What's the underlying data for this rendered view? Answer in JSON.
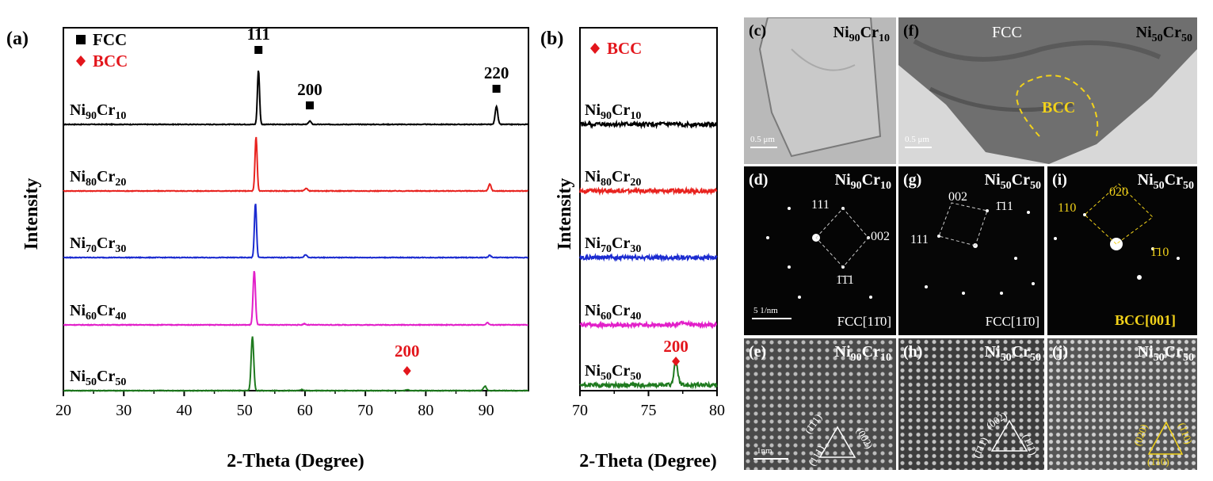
{
  "panel_labels": {
    "a": "(a)",
    "b": "(b)",
    "c": "(c)",
    "d": "(d)",
    "e": "(e)",
    "f": "(f)",
    "g": "(g)",
    "h": "(h)",
    "i": "(i)",
    "j": "(j)"
  },
  "axis": {
    "xlabel": "2-Theta (Degree)",
    "ylabel": "Intensity"
  },
  "legend": {
    "fcc": "FCC",
    "bcc": "BCC"
  },
  "colors": {
    "black": "#000000",
    "red": "#e8231f",
    "blue": "#1b2bd0",
    "magenta": "#e21fc9",
    "green": "#1f7a1f",
    "fcc_marker": "#000000",
    "bcc_marker": "#e3161c",
    "yellow": "#f2d21a"
  },
  "samples": [
    {
      "base": "Ni",
      "n1": "90",
      "el2": "Cr",
      "n2": "10",
      "color": "#000000"
    },
    {
      "base": "Ni",
      "n1": "80",
      "el2": "Cr",
      "n2": "20",
      "color": "#e8231f"
    },
    {
      "base": "Ni",
      "n1": "70",
      "el2": "Cr",
      "n2": "30",
      "color": "#1b2bd0"
    },
    {
      "base": "Ni",
      "n1": "60",
      "el2": "Cr",
      "n2": "40",
      "color": "#e21fc9"
    },
    {
      "base": "Ni",
      "n1": "50",
      "el2": "Cr",
      "n2": "50",
      "color": "#1f7a1f"
    }
  ],
  "chart_data": [
    {
      "type": "line",
      "panel": "a",
      "xlabel": "2-Theta (Degree)",
      "ylabel": "Intensity",
      "xlim": [
        20,
        97
      ],
      "xticks": [
        20,
        30,
        40,
        50,
        60,
        70,
        80,
        90
      ],
      "legend": [
        {
          "marker": "square",
          "label": "FCC"
        },
        {
          "marker": "diamond",
          "label": "BCC"
        }
      ],
      "series": [
        {
          "name": "Ni90Cr10",
          "peaks": [
            {
              "x": 52.3,
              "h": 0.95,
              "w": 0.25
            },
            {
              "x": 60.8,
              "h": 0.06,
              "w": 0.3
            },
            {
              "x": 91.7,
              "h": 0.32,
              "w": 0.3
            }
          ]
        },
        {
          "name": "Ni80Cr20",
          "peaks": [
            {
              "x": 51.9,
              "h": 0.95,
              "w": 0.25
            },
            {
              "x": 60.2,
              "h": 0.05,
              "w": 0.3
            },
            {
              "x": 90.6,
              "h": 0.12,
              "w": 0.3
            }
          ]
        },
        {
          "name": "Ni70Cr30",
          "peaks": [
            {
              "x": 51.8,
              "h": 0.95,
              "w": 0.25
            },
            {
              "x": 60.1,
              "h": 0.05,
              "w": 0.3
            },
            {
              "x": 90.6,
              "h": 0.04,
              "w": 0.3
            }
          ]
        },
        {
          "name": "Ni60Cr40",
          "peaks": [
            {
              "x": 51.6,
              "h": 0.95,
              "w": 0.28
            },
            {
              "x": 59.9,
              "h": 0.02,
              "w": 0.3
            },
            {
              "x": 90.2,
              "h": 0.04,
              "w": 0.3
            }
          ]
        },
        {
          "name": "Ni50Cr50",
          "peaks": [
            {
              "x": 51.3,
              "h": 0.95,
              "w": 0.3
            },
            {
              "x": 59.5,
              "h": 0.02,
              "w": 0.3
            },
            {
              "x": 76.9,
              "h": 0.02,
              "w": 0.3
            },
            {
              "x": 89.8,
              "h": 0.08,
              "w": 0.35
            }
          ]
        }
      ],
      "annotations": [
        {
          "text": "111",
          "x": 52.3,
          "marker": "square",
          "color": "#000000"
        },
        {
          "text": "200",
          "x": 60.8,
          "marker": "square",
          "color": "#000000"
        },
        {
          "text": "220",
          "x": 91.7,
          "marker": "square",
          "color": "#000000"
        },
        {
          "text": "200",
          "x": 76.9,
          "marker": "diamond",
          "color": "#e3161c"
        }
      ]
    },
    {
      "type": "line",
      "panel": "b",
      "xlabel": "2-Theta (Degree)",
      "ylabel": "Intensity",
      "xlim": [
        70,
        80
      ],
      "xticks": [
        70,
        75,
        80
      ],
      "legend": [
        {
          "marker": "diamond",
          "label": "BCC"
        }
      ],
      "series": [
        {
          "name": "Ni90Cr10",
          "peaks": []
        },
        {
          "name": "Ni80Cr20",
          "peaks": []
        },
        {
          "name": "Ni70Cr30",
          "peaks": []
        },
        {
          "name": "Ni60Cr40",
          "peaks": [
            {
              "x": 77.5,
              "h": 0.05,
              "w": 0.4
            }
          ]
        },
        {
          "name": "Ni50Cr50",
          "peaks": [
            {
              "x": 77.0,
              "h": 0.4,
              "w": 0.2
            }
          ]
        }
      ],
      "annotations": [
        {
          "text": "200",
          "x": 77.0,
          "marker": "diamond",
          "color": "#e3161c"
        }
      ]
    }
  ],
  "micrographs": {
    "c": {
      "comp": {
        "base": "Ni",
        "n1": "90",
        "el2": "Cr",
        "n2": "10"
      },
      "scale": "0.5 μm"
    },
    "f": {
      "comp": {
        "base": "Ni",
        "n1": "50",
        "el2": "Cr",
        "n2": "50"
      },
      "fcc": "FCC",
      "bcc": "BCC",
      "scale": "0.5 μm"
    },
    "d": {
      "comp": {
        "base": "Ni",
        "n1": "90",
        "el2": "Cr",
        "n2": "10"
      },
      "zone": "FCC[11̄0]",
      "scale": "5 1/nm",
      "spots": [
        "111",
        "002",
        "1̄1̄1"
      ]
    },
    "g": {
      "comp": {
        "base": "Ni",
        "n1": "50",
        "el2": "Cr",
        "n2": "50"
      },
      "zone": "FCC[11̄0]",
      "spots": [
        "002",
        "1̄11",
        "111"
      ]
    },
    "i": {
      "comp": {
        "base": "Ni",
        "n1": "50",
        "el2": "Cr",
        "n2": "50"
      },
      "zone": "BCC[001]",
      "spots": [
        "020",
        "110",
        "1̄10"
      ]
    },
    "e": {
      "comp": {
        "base": "Ni",
        "n1": "90",
        "el2": "Cr",
        "n2": "10"
      },
      "scale": "1nm",
      "planes": [
        "(1̄11)",
        "(002)",
        "(111)"
      ]
    },
    "h": {
      "comp": {
        "base": "Ni",
        "n1": "50",
        "el2": "Cr",
        "n2": "50"
      },
      "planes": [
        "(002)",
        "(1̄11)",
        "(111)"
      ]
    },
    "j": {
      "comp": {
        "base": "Ni",
        "n1": "50",
        "el2": "Cr",
        "n2": "50"
      },
      "planes": [
        "(020)",
        "(110)",
        "(1̄10)"
      ]
    }
  }
}
